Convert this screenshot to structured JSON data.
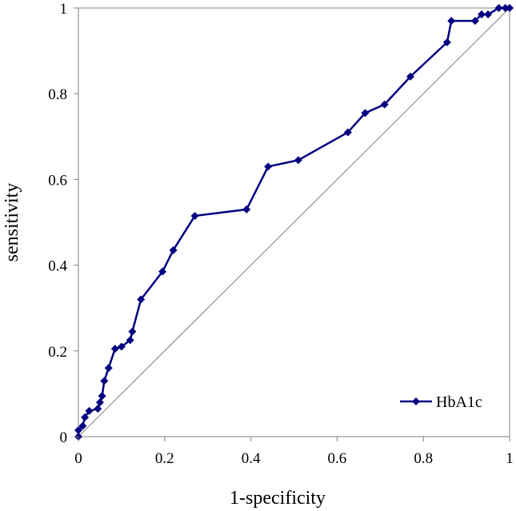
{
  "chart_data": {
    "type": "line",
    "xlabel": "1-specificity",
    "ylabel": "sensitivity",
    "xlim": [
      0,
      1
    ],
    "ylim": [
      0,
      1
    ],
    "xticks": [
      "0",
      "0.2",
      "0.4",
      "0.6",
      "0.8",
      "1"
    ],
    "yticks": [
      "0",
      "0.2",
      "0.4",
      "0.6",
      "0.8",
      "1"
    ],
    "grid": false,
    "legend": "bottom-right",
    "reference_line": "diagonal",
    "series": [
      {
        "name": "HbA1c",
        "color": "#000080",
        "marker": "diamond",
        "x": [
          0,
          0,
          0.01,
          0.015,
          0.025,
          0.045,
          0.05,
          0.055,
          0.06,
          0.07,
          0.085,
          0.1,
          0.12,
          0.125,
          0.145,
          0.195,
          0.22,
          0.27,
          0.39,
          0.44,
          0.51,
          0.625,
          0.665,
          0.71,
          0.77,
          0.855,
          0.865,
          0.92,
          0.935,
          0.95,
          0.975,
          0.99,
          1
        ],
        "y": [
          0,
          0.015,
          0.025,
          0.045,
          0.06,
          0.065,
          0.08,
          0.095,
          0.13,
          0.16,
          0.205,
          0.21,
          0.225,
          0.245,
          0.32,
          0.385,
          0.435,
          0.515,
          0.53,
          0.63,
          0.645,
          0.71,
          0.755,
          0.775,
          0.84,
          0.92,
          0.97,
          0.97,
          0.985,
          0.985,
          1,
          1,
          1
        ]
      }
    ]
  }
}
